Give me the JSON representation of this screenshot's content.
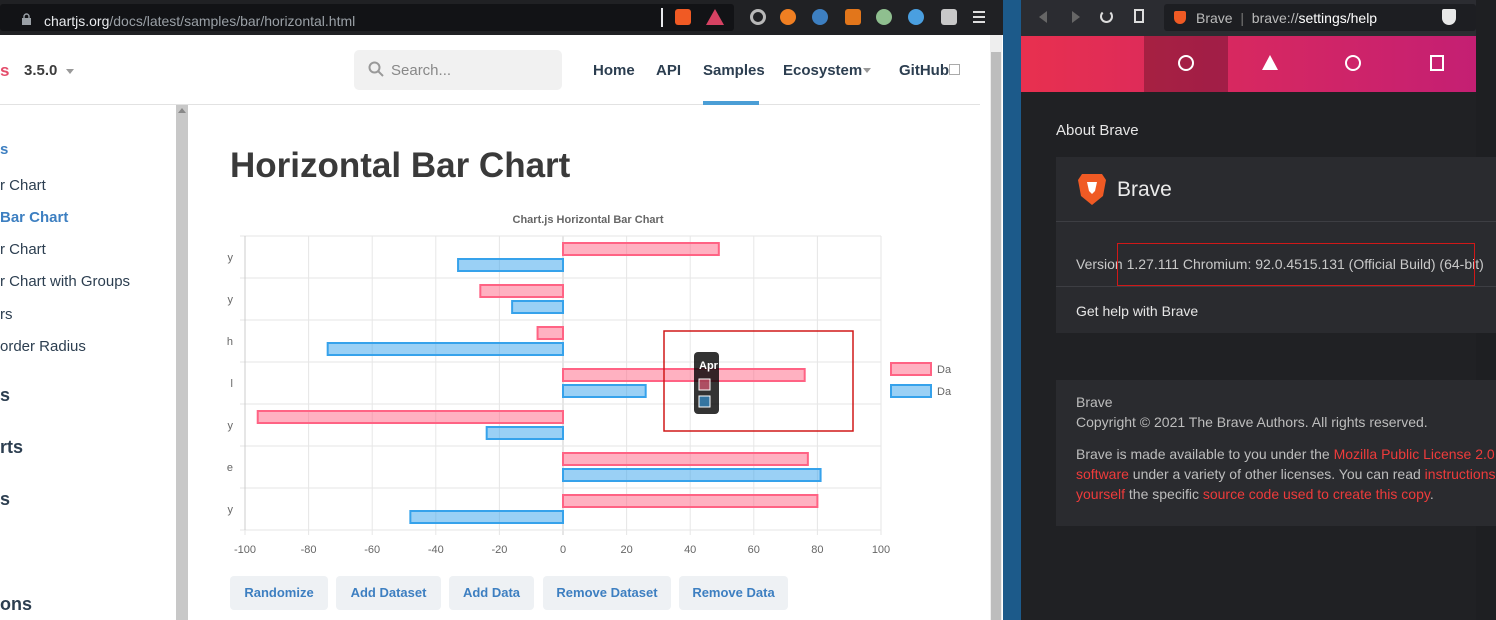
{
  "left_browser": {
    "url_host": "chartjs.org",
    "url_path": "/docs/latest/samples/bar/horizontal.html"
  },
  "site": {
    "logo_fragment": "s",
    "version": "3.5.0",
    "search_placeholder": "Search...",
    "nav": [
      "Home",
      "API",
      "Samples",
      "Ecosystem",
      "GitHub"
    ],
    "sidebar_links": [
      "s",
      "r Chart",
      "Bar Chart",
      "r Chart",
      "r Chart with Groups",
      "rs",
      "order Radius"
    ],
    "sidebar_headings": [
      "s",
      "rts",
      "s",
      "ons"
    ],
    "page_title": "Horizontal Bar Chart",
    "buttons": [
      "Randomize",
      "Add Dataset",
      "Add Data",
      "Remove Dataset",
      "Remove Data"
    ]
  },
  "chart_data": {
    "type": "bar",
    "orientation": "horizontal",
    "title": "Chart.js Horizontal Bar Chart",
    "categories": [
      "y",
      "y",
      "h",
      "l",
      "y",
      "e",
      "y"
    ],
    "series": [
      {
        "name": "Da",
        "color": "#ff6384",
        "values": [
          49,
          -26,
          -8,
          76,
          -96,
          77,
          80
        ]
      },
      {
        "name": "Da",
        "color": "#36a2eb",
        "values": [
          -33,
          -16,
          -74,
          26,
          -24,
          81,
          -48
        ]
      }
    ],
    "xlim": [
      -100,
      100
    ],
    "xticks": [
      -100,
      -80,
      -60,
      -40,
      -20,
      0,
      20,
      40,
      60,
      80,
      100
    ],
    "grid": true,
    "legend_position": "right",
    "tooltip_title": "Apr"
  },
  "right_browser": {
    "tab_title": "Brave",
    "url_scheme": "brave://",
    "url_path": "settings/help",
    "section_title": "About Brave",
    "app_name": "Brave",
    "version_text": "Version 1.27.111 Chromium: 92.0.4515.131 (Official Build) (64-bit)",
    "help_text": "Get help with Brave",
    "footer_name": "Brave",
    "copyright": "Copyright © 2021 The Brave Authors. All rights reserved.",
    "license_line1_pre": "Brave is made available to you under the ",
    "license_link1": "Mozilla Public License 2.0",
    "license_line2_link": "software",
    "license_line2_mid": " under a variety of other licenses. You can read ",
    "license_line2_link2": "instructions",
    "license_line3_link": "yourself",
    "license_line3_mid": " the specific ",
    "license_line3_link2": "source code used to create this copy",
    "license_line3_end": "."
  },
  "colors": {
    "chart_red": "#ff6384",
    "chart_blue": "#36a2eb",
    "brave_gradient_start": "#e8304f",
    "brave_gradient_end": "#c41f73"
  }
}
